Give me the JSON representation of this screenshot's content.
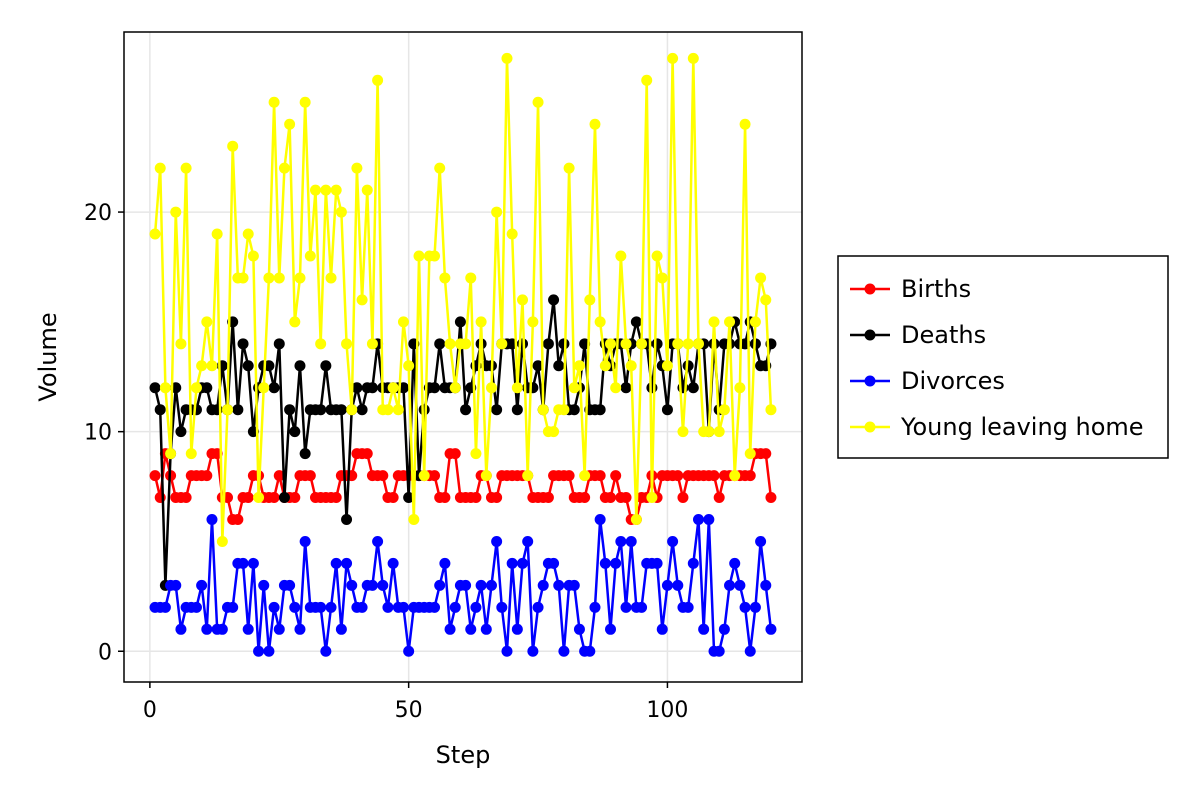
{
  "chart_data": {
    "type": "line",
    "xlabel": "Step",
    "ylabel": "Volume",
    "xlim": [
      -5,
      126
    ],
    "ylim": [
      -1.4,
      28.2
    ],
    "xticks": [
      0,
      50,
      100
    ],
    "yticks": [
      0,
      10,
      20
    ],
    "grid": true,
    "legend_placement": "outside-right",
    "x_start": 1,
    "series": [
      {
        "name": "Births",
        "color": "#ff0000",
        "values": [
          8,
          7,
          9,
          8,
          7,
          7,
          7,
          8,
          8,
          8,
          8,
          9,
          9,
          7,
          7,
          6,
          6,
          7,
          7,
          8,
          8,
          7,
          7,
          7,
          8,
          7,
          7,
          7,
          8,
          8,
          8,
          7,
          7,
          7,
          7,
          7,
          8,
          8,
          8,
          9,
          9,
          9,
          8,
          8,
          8,
          7,
          7,
          8,
          8,
          8,
          8,
          8,
          8,
          8,
          8,
          7,
          7,
          9,
          9,
          7,
          7,
          7,
          7,
          8,
          8,
          7,
          7,
          8,
          8,
          8,
          8,
          8,
          8,
          7,
          7,
          7,
          7,
          8,
          8,
          8,
          8,
          7,
          7,
          7,
          8,
          8,
          8,
          7,
          7,
          8,
          7,
          7,
          6,
          6,
          7,
          7,
          8,
          7,
          8,
          8,
          8,
          8,
          7,
          8,
          8,
          8,
          8,
          8,
          8,
          7,
          8,
          8,
          8,
          8,
          8,
          8,
          9,
          9,
          9,
          7
        ]
      },
      {
        "name": "Deaths",
        "color": "#000000",
        "values": [
          12,
          11,
          3,
          9,
          12,
          10,
          11,
          11,
          11,
          12,
          12,
          11,
          11,
          13,
          11,
          15,
          11,
          14,
          13,
          10,
          12,
          13,
          13,
          12,
          14,
          7,
          11,
          10,
          13,
          9,
          11,
          11,
          11,
          13,
          11,
          11,
          11,
          6,
          11,
          12,
          11,
          12,
          12,
          14,
          12,
          12,
          12,
          12,
          12,
          7,
          14,
          8,
          11,
          12,
          12,
          14,
          12,
          12,
          12,
          15,
          11,
          12,
          13,
          14,
          13,
          13,
          11,
          14,
          14,
          14,
          11,
          14,
          12,
          12,
          13,
          11,
          14,
          16,
          13,
          14,
          11,
          11,
          12,
          14,
          11,
          11,
          11,
          14,
          13,
          14,
          14,
          12,
          14,
          15,
          14,
          14,
          12,
          14,
          13,
          11,
          14,
          14,
          12,
          13,
          12,
          14,
          14,
          10,
          14,
          11,
          14,
          14,
          15,
          14,
          14,
          15,
          14,
          13,
          13,
          14
        ]
      },
      {
        "name": "Divorces",
        "color": "#0000ff",
        "values": [
          2,
          2,
          2,
          3,
          3,
          1,
          2,
          2,
          2,
          3,
          1,
          6,
          1,
          1,
          2,
          2,
          4,
          4,
          1,
          4,
          0,
          3,
          0,
          2,
          1,
          3,
          3,
          2,
          1,
          5,
          2,
          2,
          2,
          0,
          2,
          4,
          1,
          4,
          3,
          2,
          2,
          3,
          3,
          5,
          3,
          2,
          4,
          2,
          2,
          0,
          2,
          2,
          2,
          2,
          2,
          3,
          4,
          1,
          2,
          3,
          3,
          1,
          2,
          3,
          1,
          3,
          5,
          2,
          0,
          4,
          1,
          4,
          5,
          0,
          2,
          3,
          4,
          4,
          3,
          0,
          3,
          3,
          1,
          0,
          0,
          2,
          6,
          4,
          1,
          4,
          5,
          2,
          5,
          2,
          2,
          4,
          4,
          4,
          1,
          3,
          5,
          3,
          2,
          2,
          4,
          6,
          1,
          6,
          0,
          0,
          1,
          3,
          4,
          3,
          2,
          0,
          2,
          5,
          3,
          1
        ]
      },
      {
        "name": "Young leaving home",
        "color": "#ffff00",
        "values": [
          19,
          22,
          12,
          9,
          20,
          14,
          22,
          9,
          12,
          13,
          15,
          13,
          19,
          5,
          11,
          23,
          17,
          17,
          19,
          18,
          7,
          12,
          17,
          25,
          17,
          22,
          24,
          15,
          17,
          25,
          18,
          21,
          14,
          21,
          17,
          21,
          20,
          14,
          11,
          22,
          16,
          21,
          14,
          26,
          11,
          11,
          12,
          11,
          15,
          13,
          6,
          18,
          8,
          18,
          18,
          22,
          17,
          14,
          12,
          14,
          14,
          17,
          9,
          15,
          8,
          12,
          20,
          14,
          27,
          19,
          12,
          16,
          8,
          15,
          25,
          11,
          10,
          10,
          11,
          11,
          22,
          12,
          13,
          8,
          16,
          24,
          15,
          13,
          14,
          12,
          18,
          14,
          13,
          6,
          14,
          26,
          7,
          18,
          17,
          13,
          27,
          14,
          10,
          14,
          27,
          14,
          10,
          10,
          15,
          10,
          11,
          15,
          8,
          12,
          24,
          9,
          15,
          17,
          16,
          11
        ]
      }
    ]
  }
}
